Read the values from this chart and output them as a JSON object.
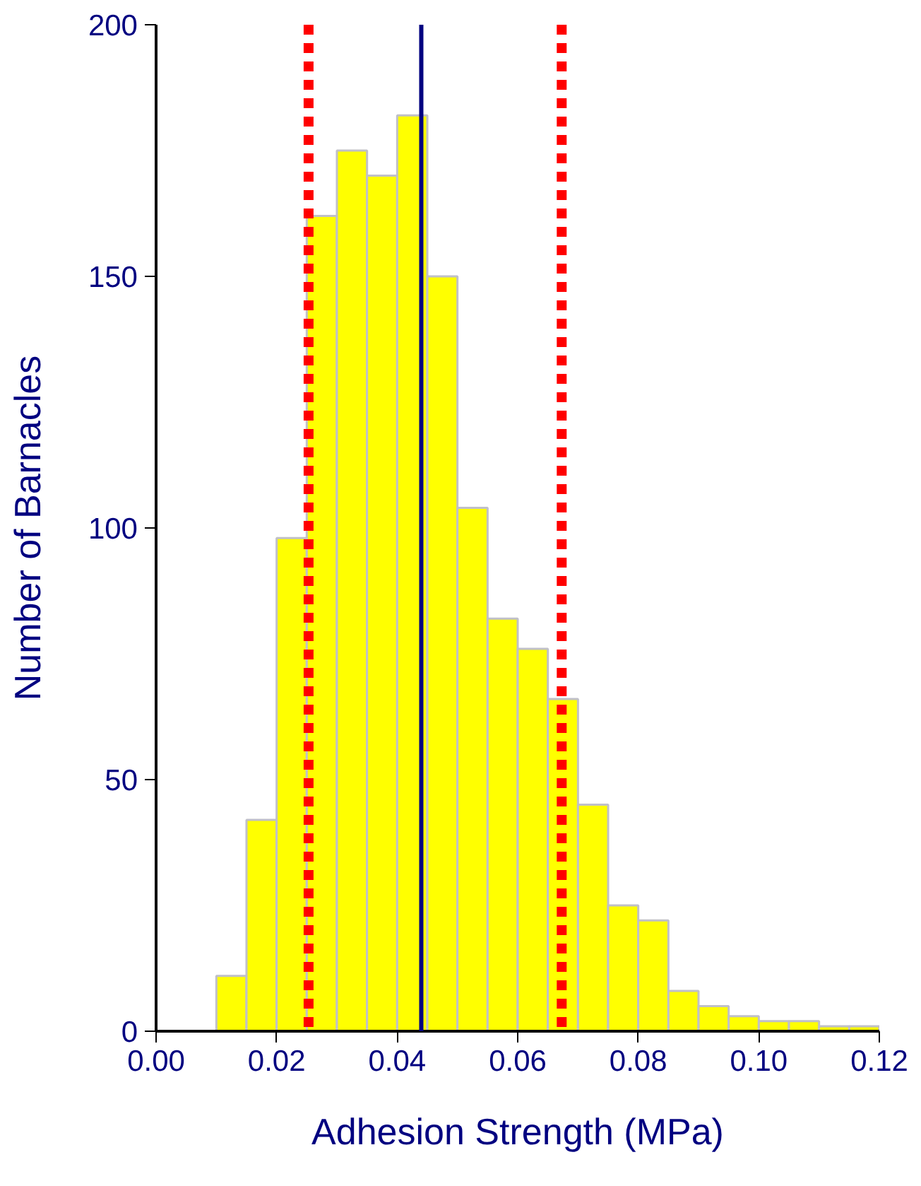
{
  "chart_data": {
    "type": "histogram",
    "xlabel": "Adhesion Strength (MPa)",
    "ylabel": "Number of Barnacles",
    "bins": [
      0.01,
      0.015,
      0.02,
      0.025,
      0.03,
      0.035,
      0.04,
      0.045,
      0.05,
      0.055,
      0.06,
      0.065,
      0.07,
      0.075,
      0.08,
      0.085,
      0.09,
      0.095,
      0.1,
      0.105,
      0.11,
      0.115,
      0.12
    ],
    "values": [
      11,
      42,
      98,
      162,
      175,
      170,
      182,
      150,
      104,
      82,
      76,
      66,
      45,
      25,
      22,
      8,
      5,
      3,
      2,
      2,
      1,
      1
    ],
    "color": "#ffff00",
    "xlim": [
      0,
      0.12
    ],
    "xticks": [
      {
        "value": 0,
        "label": "0.00"
      },
      {
        "value": 0.02,
        "label": "0.02"
      },
      {
        "value": 0.04,
        "label": "0.04"
      },
      {
        "value": 0.06,
        "label": "0.06"
      },
      {
        "value": 0.08,
        "label": "0.08"
      },
      {
        "value": 0.1,
        "label": "0.10"
      },
      {
        "value": 0.12,
        "label": "0.12"
      }
    ],
    "ylim": [
      0,
      200
    ],
    "yticks": [
      0,
      50,
      100,
      150,
      200
    ],
    "grid": false,
    "ref_lines": [
      {
        "axis": "x",
        "value": 0.0253,
        "color": "#ff0000",
        "line_style": "dotted"
      },
      {
        "axis": "x",
        "value": 0.044,
        "color": "#000080",
        "line_style": "solid"
      },
      {
        "axis": "x",
        "value": 0.0673,
        "color": "#ff0000",
        "line_style": "dotted"
      }
    ]
  }
}
